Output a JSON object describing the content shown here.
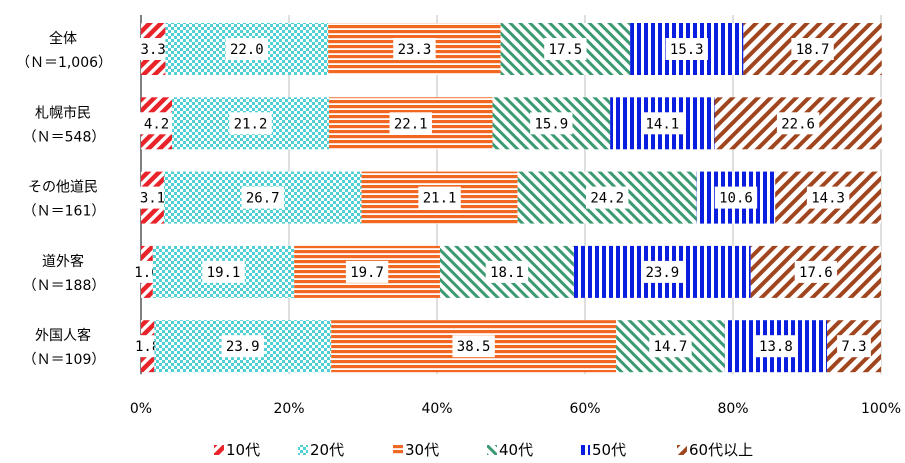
{
  "chart_data": {
    "type": "bar",
    "orientation": "horizontal",
    "stacked": true,
    "percent": true,
    "categories": [
      {
        "name": "全体",
        "n": "（Ｎ＝1,006）"
      },
      {
        "name": "札幌市民",
        "n": "（Ｎ＝548）"
      },
      {
        "name": "その他道民",
        "n": "（Ｎ＝161）"
      },
      {
        "name": "道外客",
        "n": "（Ｎ＝188）"
      },
      {
        "name": "外国人客",
        "n": "（Ｎ＝109）"
      }
    ],
    "series": [
      {
        "name": "10代",
        "color": "#e8242a",
        "pattern": "diag-left",
        "values": [
          3.3,
          4.2,
          3.1,
          1.6,
          1.8
        ]
      },
      {
        "name": "20代",
        "color": "#4fd0d4",
        "pattern": "checker",
        "values": [
          22.0,
          21.2,
          26.7,
          19.1,
          23.9
        ]
      },
      {
        "name": "30代",
        "color": "#f26722",
        "pattern": "horizontal",
        "values": [
          23.3,
          22.1,
          21.1,
          19.7,
          38.5
        ]
      },
      {
        "name": "40代",
        "color": "#3b9a72",
        "pattern": "diag-right",
        "values": [
          17.5,
          15.9,
          24.2,
          18.1,
          14.7
        ]
      },
      {
        "name": "50代",
        "color": "#0a1ee0",
        "pattern": "vertical",
        "values": [
          15.3,
          14.1,
          10.6,
          23.9,
          13.8
        ]
      },
      {
        "name": "60代以上",
        "color": "#a0451e",
        "pattern": "diag-left-wide",
        "values": [
          18.7,
          22.6,
          14.3,
          17.6,
          7.3
        ]
      }
    ],
    "value_labels": [
      [
        "3.3",
        "22.0",
        "23.3",
        "17.5",
        "15.3",
        "18.7"
      ],
      [
        "4.2",
        "21.2",
        "22.1",
        "15.9",
        "14.1",
        "22.6"
      ],
      [
        "3.1",
        "26.7",
        "21.1",
        "24.2",
        "10.6",
        "14.3"
      ],
      [
        "1.6",
        "19.1",
        "19.7",
        "18.1",
        "23.9",
        "17.6"
      ],
      [
        "1.8",
        "23.9",
        "38.5",
        "14.7",
        "13.8",
        "7.3"
      ]
    ],
    "xlim": [
      0,
      100
    ],
    "x_ticks": [
      "0%",
      "20%",
      "40%",
      "60%",
      "80%",
      "100%"
    ],
    "grid": true,
    "legend_position": "bottom"
  }
}
